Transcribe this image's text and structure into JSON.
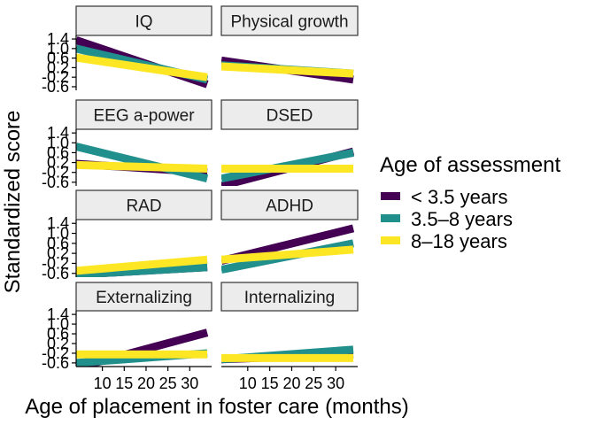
{
  "chart_data": {
    "type": "line",
    "xlabel": "Age of placement in foster care (months)",
    "ylabel": "Standardized score",
    "xlim": [
      4,
      35
    ],
    "ylim": [
      -0.75,
      1.55
    ],
    "x_ticks": [
      10,
      15,
      20,
      25,
      30
    ],
    "y_ticks": [
      -0.6,
      -0.2,
      0.2,
      0.6,
      1.0,
      1.4
    ],
    "y_tick_labels": [
      "-0.6",
      "-0.2",
      "0.2",
      "0.6",
      "1.0",
      "1.4"
    ],
    "grid": false,
    "legend": {
      "title": "Age of assessment",
      "placement": "right",
      "entries": [
        {
          "label": "< 3.5 years",
          "color": "#440154"
        },
        {
          "label": "3.5–8 years",
          "color": "#21908C"
        },
        {
          "label": "8–18 years",
          "color": "#FDE725"
        }
      ]
    },
    "panels": [
      {
        "title": "IQ",
        "series": [
          {
            "name": "< 3.5 years",
            "x": [
              4,
              34
            ],
            "y": [
              1.35,
              -0.5
            ]
          },
          {
            "name": "3.5–8 years",
            "x": [
              4,
              34
            ],
            "y": [
              1.0,
              -0.3
            ]
          },
          {
            "name": "8–18 years",
            "x": [
              4,
              34
            ],
            "y": [
              0.62,
              -0.2
            ]
          }
        ]
      },
      {
        "title": "Physical growth",
        "series": [
          {
            "name": "< 3.5 years",
            "x": [
              4,
              34
            ],
            "y": [
              0.5,
              -0.3
            ]
          },
          {
            "name": "3.5–8 years",
            "x": [
              4,
              34
            ],
            "y": [
              0.3,
              -0.05
            ]
          },
          {
            "name": "8–18 years",
            "x": [
              4,
              34
            ],
            "y": [
              0.25,
              -0.05
            ]
          }
        ]
      },
      {
        "title": "EEG a-power",
        "series": [
          {
            "name": "< 3.5 years",
            "x": [
              4,
              34
            ],
            "y": [
              0.15,
              -0.2
            ]
          },
          {
            "name": "3.5–8 years",
            "x": [
              4,
              34
            ],
            "y": [
              0.85,
              -0.45
            ]
          },
          {
            "name": "8–18 years",
            "x": [
              4,
              34
            ],
            "y": [
              0.1,
              -0.05
            ]
          }
        ]
      },
      {
        "title": "DSED",
        "series": [
          {
            "name": "< 3.5 years",
            "x": [
              4,
              34
            ],
            "y": [
              -0.75,
              0.65
            ]
          },
          {
            "name": "3.5–8 years",
            "x": [
              4,
              34
            ],
            "y": [
              -0.45,
              0.6
            ]
          },
          {
            "name": "8–18 years",
            "x": [
              4,
              34
            ],
            "y": [
              -0.05,
              -0.05
            ]
          }
        ]
      },
      {
        "title": "RAD",
        "series": [
          {
            "name": "< 3.5 years",
            "x": [
              4,
              34
            ],
            "y": [
              -0.65,
              -0.35
            ]
          },
          {
            "name": "3.5–8 years",
            "x": [
              4,
              34
            ],
            "y": [
              -0.65,
              -0.35
            ]
          },
          {
            "name": "8–18 years",
            "x": [
              4,
              34
            ],
            "y": [
              -0.5,
              -0.05
            ]
          }
        ]
      },
      {
        "title": "ADHD",
        "series": [
          {
            "name": "< 3.5 years",
            "x": [
              4,
              34
            ],
            "y": [
              -0.1,
              1.2
            ]
          },
          {
            "name": "3.5–8 years",
            "x": [
              4,
              34
            ],
            "y": [
              -0.45,
              0.6
            ]
          },
          {
            "name": "8–18 years",
            "x": [
              4,
              34
            ],
            "y": [
              -0.05,
              0.35
            ]
          }
        ]
      },
      {
        "title": "Externalizing",
        "series": [
          {
            "name": "< 3.5 years",
            "x": [
              4,
              34
            ],
            "y": [
              -0.8,
              0.65
            ]
          },
          {
            "name": "3.5–8 years",
            "x": [
              4,
              34
            ],
            "y": [
              -0.6,
              -0.2
            ]
          },
          {
            "name": "8–18 years",
            "x": [
              4,
              34
            ],
            "y": [
              -0.25,
              -0.25
            ]
          }
        ]
      },
      {
        "title": "Internalizing",
        "series": [
          {
            "name": "< 3.5 years",
            "x": [
              4,
              34
            ],
            "y": [
              -0.45,
              -0.25
            ]
          },
          {
            "name": "3.5–8 years",
            "x": [
              4,
              34
            ],
            "y": [
              -0.45,
              -0.05
            ]
          },
          {
            "name": "8–18 years",
            "x": [
              4,
              34
            ],
            "y": [
              -0.4,
              -0.4
            ]
          }
        ]
      }
    ]
  }
}
